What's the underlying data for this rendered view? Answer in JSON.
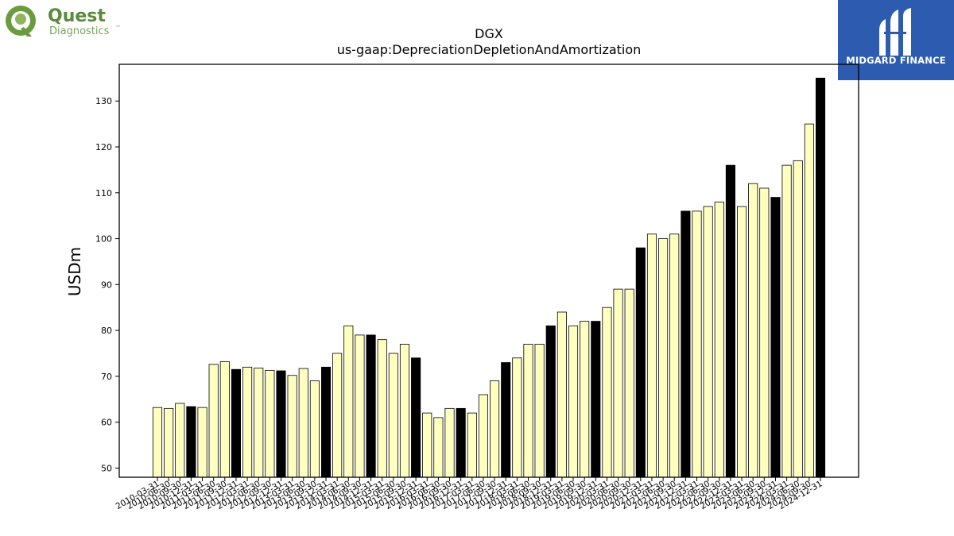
{
  "logos": {
    "left": {
      "line1": "Quest",
      "line2": "Diagnostics",
      "mark": "™",
      "color": "#5a8a3a"
    },
    "right": {
      "text": "MIDGARD FINANCE",
      "bg": "#2c5bb0"
    }
  },
  "chart_data": {
    "type": "bar",
    "title": "DGX",
    "subtitle": "us-gaap:DepreciationDepletionAndAmortization",
    "xlabel": "",
    "ylabel": "USDm",
    "ylim": [
      48,
      138
    ],
    "yticks": [
      50,
      60,
      70,
      80,
      90,
      100,
      110,
      120,
      130
    ],
    "grid": false,
    "colors": {
      "quarter": "#ffffc0",
      "year_end": "#000000",
      "edge": "#000000"
    },
    "categories": [
      "2010-03-31",
      "2010-06-30",
      "2010-09-30",
      "2010-12-31",
      "2011-03-31",
      "2011-06-30",
      "2011-09-30",
      "2011-12-31",
      "2012-03-31",
      "2012-06-30",
      "2012-09-30",
      "2012-12-31",
      "2013-03-31",
      "2013-06-30",
      "2013-09-30",
      "2013-12-31",
      "2014-03-31",
      "2014-06-30",
      "2014-09-30",
      "2014-12-31",
      "2015-03-31",
      "2015-06-30",
      "2015-09-30",
      "2015-12-31",
      "2016-03-31",
      "2016-06-30",
      "2016-09-30",
      "2016-12-31",
      "2017-03-31",
      "2017-06-30",
      "2017-09-30",
      "2017-12-31",
      "2018-03-31",
      "2018-06-30",
      "2018-09-30",
      "2018-12-31",
      "2019-03-31",
      "2019-06-30",
      "2019-09-30",
      "2019-12-31",
      "2020-03-31",
      "2020-06-30",
      "2020-09-30",
      "2020-12-31",
      "2021-03-31",
      "2021-06-30",
      "2021-09-30",
      "2021-12-31",
      "2022-03-31",
      "2022-06-30",
      "2022-09-30",
      "2022-12-31",
      "2023-03-31",
      "2023-06-30",
      "2023-09-30",
      "2023-12-31",
      "2024-03-31",
      "2024-06-30",
      "2024-09-30",
      "2024-12-31"
    ],
    "values": [
      63.2,
      63.0,
      64.1,
      63.4,
      63.2,
      72.6,
      73.2,
      71.5,
      72.0,
      71.8,
      71.3,
      71.2,
      70.2,
      71.7,
      69.0,
      72.0,
      75.0,
      81.0,
      79.0,
      79.0,
      78.0,
      75.0,
      77.0,
      74.0,
      62.0,
      61.0,
      63.0,
      63.0,
      62.0,
      66.0,
      69.0,
      73.0,
      74.0,
      77.0,
      77.0,
      81.0,
      84.0,
      81.0,
      82.0,
      82.0,
      85.0,
      89.0,
      89.0,
      98.0,
      101.0,
      100.0,
      101.0,
      106.0,
      106.0,
      107.0,
      108.0,
      116.0,
      107.0,
      112.0,
      111.0,
      109.0,
      116.0,
      117.0,
      125.0,
      135.0
    ]
  }
}
